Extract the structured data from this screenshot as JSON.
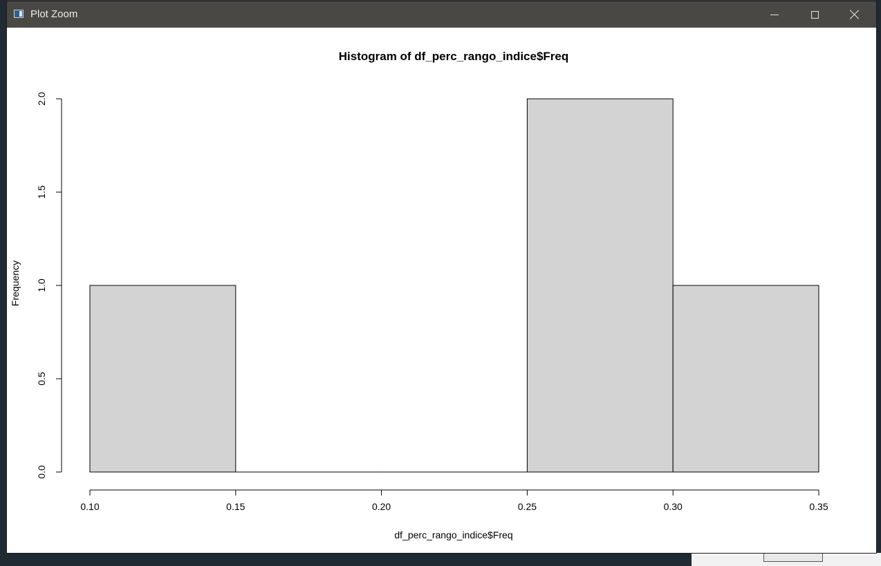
{
  "window": {
    "title": "Plot Zoom",
    "minimize_label": "Minimize",
    "maximize_label": "Maximize",
    "close_label": "Close"
  },
  "chart_data": {
    "type": "bar",
    "title": "Histogram of df_perc_rango_indice$Freq",
    "xlabel": "df_perc_rango_indice$Freq",
    "ylabel": "Frequency",
    "bins": [
      {
        "start": 0.1,
        "end": 0.15,
        "count": 1
      },
      {
        "start": 0.15,
        "end": 0.2,
        "count": 0
      },
      {
        "start": 0.2,
        "end": 0.25,
        "count": 0
      },
      {
        "start": 0.25,
        "end": 0.3,
        "count": 2
      },
      {
        "start": 0.3,
        "end": 0.35,
        "count": 1
      }
    ],
    "xlim": [
      0.1,
      0.35
    ],
    "ylim": [
      0,
      2.0
    ],
    "xticks": [
      "0.10",
      "0.15",
      "0.20",
      "0.25",
      "0.30",
      "0.35"
    ],
    "yticks": [
      "0.0",
      "0.5",
      "1.0",
      "1.5",
      "2.0"
    ],
    "bar_color": "#d3d3d3",
    "grid": false
  }
}
